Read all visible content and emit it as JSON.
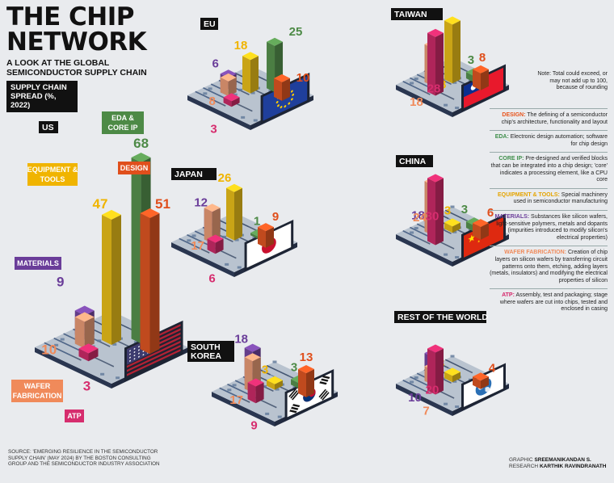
{
  "header": {
    "title_line1": "THE CHIP",
    "title_line2": "NETWORK",
    "subtitle": "A LOOK AT THE GLOBAL SEMICONDUCTOR SUPPLY CHAIN",
    "spread_label": "SUPPLY CHAIN SPREAD (%, 2022)"
  },
  "note": "Note: Total could exceed, or may not add up to 100, because of rounding",
  "glossary": [
    {
      "term": "DESIGN:",
      "text": "The defining of a semiconductor chip's architecture, functionality and layout",
      "color": "#e8541d"
    },
    {
      "term": "EDA:",
      "text": "Electronic design automation; software for chip design",
      "color": "#3e8e4a"
    },
    {
      "term": "CORE IP:",
      "text": "Pre-designed and verified blocks that can be integrated into a chip design; 'core' indicates a processing element, like a CPU core",
      "color": "#3e8e4a"
    },
    {
      "term": "EQUIPMENT & TOOLS:",
      "text": "Special machinery used in semiconductor manufacturing",
      "color": "#e5a400"
    },
    {
      "term": "MATERIALS:",
      "text": "Substances like silicon wafers, light-sensitive polymers, metals and dopants (impurities introduced to modify silicon's electrical properties)",
      "color": "#6a3d99"
    },
    {
      "term": "WAFER FABRICATION:",
      "text": "Creation of chip layers on silicon wafers by transferring circuit patterns onto them, etching, adding layers (metals, insulators) and modifying the electrical properties of silicon",
      "color": "#f08a5a"
    },
    {
      "term": "ATP:",
      "text": "Assembly, test and packaging; stage where wafers are cut into chips, tested and enclosed in casing",
      "color": "#d6266b"
    }
  ],
  "source": "SOURCE: 'EMERGING RESILIENCE IN THE SEMICONDUCTOR SUPPLY CHAIN' (MAY 2024) BY THE BOSTON CONSULTING GROUP AND THE SEMICONDUCTOR INDUSTRY ASSOCIATION",
  "credits": {
    "graphic_label": "GRAPHIC",
    "graphic_name": "SREEMANIKANDAN S.",
    "research_label": "RESEARCH",
    "research_name": "KARTHIK RAVINDRANATH"
  },
  "us_category_labels": {
    "eda": "EDA & CORE IP",
    "design": "DESIGN",
    "equipment": "EQUIPMENT & TOOLS",
    "materials": "MATERIALS",
    "wafer": "WAFER FABRICATION",
    "atp": "ATP"
  },
  "colors": {
    "eda": "#5b9a52",
    "design": "#ea5a24",
    "equipment": "#f5c81b",
    "materials": "#7a4aa8",
    "wafer": "#f5a47c",
    "atp": "#d62d6e",
    "board": "#b9c3cf",
    "board_dark": "#3a4a66",
    "board_side": "#2a3650"
  },
  "chart_data": {
    "type": "bar",
    "categories": [
      "EDA & CORE IP",
      "DESIGN",
      "EQUIPMENT & TOOLS",
      "MATERIALS",
      "WAFER FABRICATION",
      "ATP"
    ],
    "series": [
      {
        "name": "US",
        "values": [
          68,
          51,
          47,
          9,
          10,
          3
        ]
      },
      {
        "name": "EU",
        "values": [
          25,
          10,
          18,
          6,
          8,
          3
        ]
      },
      {
        "name": "JAPAN",
        "values": [
          1,
          9,
          26,
          12,
          17,
          6
        ]
      },
      {
        "name": "SOUTH KOREA",
        "values": [
          3,
          13,
          3,
          18,
          17,
          9
        ]
      },
      {
        "name": "TAIWAN",
        "values": [
          3,
          8,
          28,
          null,
          18,
          28
        ]
      },
      {
        "name": "CHINA",
        "values": [
          3,
          6,
          3,
          18,
          24,
          30
        ]
      },
      {
        "name": "REST OF THE WORLD",
        "values": [
          null,
          4,
          3,
          10,
          7,
          20
        ]
      }
    ]
  }
}
